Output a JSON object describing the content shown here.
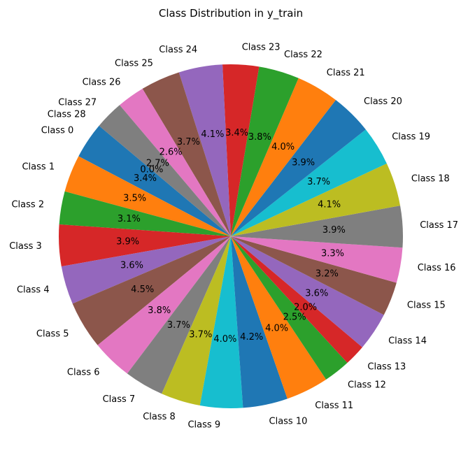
{
  "chart_data": {
    "type": "pie",
    "title": "Class Distribution in y_train",
    "start_angle_deg": 140,
    "counterclockwise": true,
    "slices": [
      {
        "label": "Class 0",
        "value": 3.4,
        "value_label": "3.4%",
        "color": "#1f77b4"
      },
      {
        "label": "Class 1",
        "value": 3.5,
        "value_label": "3.5%",
        "color": "#ff7f0e"
      },
      {
        "label": "Class 2",
        "value": 3.1,
        "value_label": "3.1%",
        "color": "#2ca02c"
      },
      {
        "label": "Class 3",
        "value": 3.9,
        "value_label": "3.9%",
        "color": "#d62728"
      },
      {
        "label": "Class 4",
        "value": 3.6,
        "value_label": "3.6%",
        "color": "#9467bd"
      },
      {
        "label": "Class 5",
        "value": 4.5,
        "value_label": "4.5%",
        "color": "#8c564b"
      },
      {
        "label": "Class 6",
        "value": 3.8,
        "value_label": "3.8%",
        "color": "#e377c2"
      },
      {
        "label": "Class 7",
        "value": 3.7,
        "value_label": "3.7%",
        "color": "#7f7f7f"
      },
      {
        "label": "Class 8",
        "value": 3.7,
        "value_label": "3.7%",
        "color": "#bcbd22"
      },
      {
        "label": "Class 9",
        "value": 4.0,
        "value_label": "4.0%",
        "color": "#17becf"
      },
      {
        "label": "Class 10",
        "value": 4.2,
        "value_label": "4.2%",
        "color": "#1f77b4"
      },
      {
        "label": "Class 11",
        "value": 4.0,
        "value_label": "4.0%",
        "color": "#ff7f0e"
      },
      {
        "label": "Class 12",
        "value": 2.5,
        "value_label": "2.5%",
        "color": "#2ca02c"
      },
      {
        "label": "Class 13",
        "value": 2.0,
        "value_label": "2.0%",
        "color": "#d62728"
      },
      {
        "label": "Class 14",
        "value": 3.6,
        "value_label": "3.6%",
        "color": "#9467bd"
      },
      {
        "label": "Class 15",
        "value": 3.2,
        "value_label": "3.2%",
        "color": "#8c564b"
      },
      {
        "label": "Class 16",
        "value": 3.3,
        "value_label": "3.3%",
        "color": "#e377c2"
      },
      {
        "label": "Class 17",
        "value": 3.9,
        "value_label": "3.9%",
        "color": "#7f7f7f"
      },
      {
        "label": "Class 18",
        "value": 4.1,
        "value_label": "4.1%",
        "color": "#bcbd22"
      },
      {
        "label": "Class 19",
        "value": 3.7,
        "value_label": "3.7%",
        "color": "#17becf"
      },
      {
        "label": "Class 20",
        "value": 3.9,
        "value_label": "3.9%",
        "color": "#1f77b4"
      },
      {
        "label": "Class 21",
        "value": 4.0,
        "value_label": "4.0%",
        "color": "#ff7f0e"
      },
      {
        "label": "Class 22",
        "value": 3.8,
        "value_label": "3.8%",
        "color": "#2ca02c"
      },
      {
        "label": "Class 23",
        "value": 3.4,
        "value_label": "3.4%",
        "color": "#d62728"
      },
      {
        "label": "Class 24",
        "value": 4.1,
        "value_label": "4.1%",
        "color": "#9467bd"
      },
      {
        "label": "Class 25",
        "value": 3.7,
        "value_label": "3.7%",
        "color": "#8c564b"
      },
      {
        "label": "Class 26",
        "value": 2.6,
        "value_label": "2.6%",
        "color": "#e377c2"
      },
      {
        "label": "Class 27",
        "value": 2.7,
        "value_label": "2.7%",
        "color": "#7f7f7f"
      },
      {
        "label": "Class 28",
        "value": 0.0,
        "value_label": "0.0%",
        "color": "#bcbd22"
      }
    ]
  }
}
